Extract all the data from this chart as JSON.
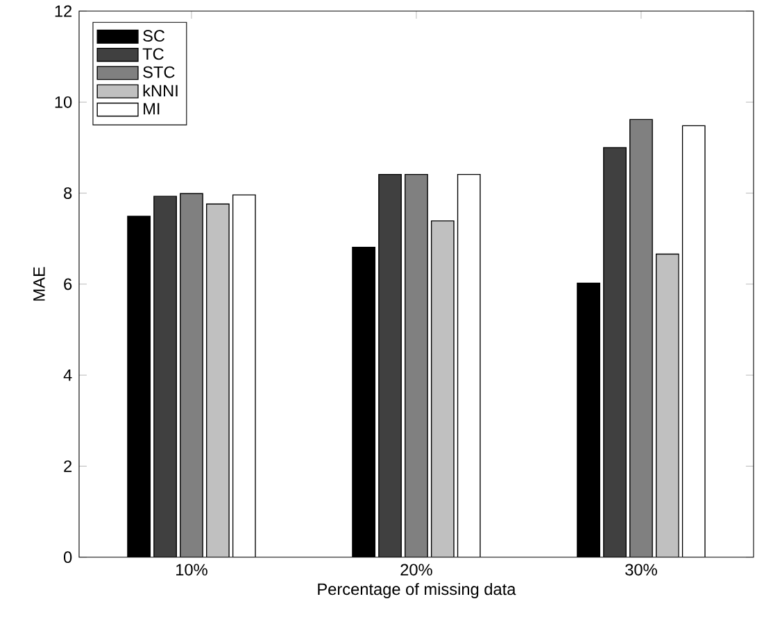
{
  "chart_data": {
    "type": "bar",
    "xlabel": "Percentage of missing data",
    "ylabel": "MAE",
    "categories": [
      "10%",
      "20%",
      "30%"
    ],
    "series": [
      {
        "name": "SC",
        "color": "#000000",
        "values": [
          7.49,
          6.81,
          6.02
        ]
      },
      {
        "name": "TC",
        "color": "#404040",
        "values": [
          7.93,
          8.41,
          9.0
        ]
      },
      {
        "name": "STC",
        "color": "#808080",
        "values": [
          7.99,
          8.41,
          9.62
        ]
      },
      {
        "name": "kNNI",
        "color": "#c0c0c0",
        "values": [
          7.76,
          7.39,
          6.66
        ]
      },
      {
        "name": "MI",
        "color": "#ffffff",
        "values": [
          7.96,
          8.41,
          9.48
        ]
      }
    ],
    "ylim": [
      0,
      12
    ],
    "yticks": [
      0,
      2,
      4,
      6,
      8,
      10,
      12
    ],
    "legend": "top left",
    "grid": false
  }
}
